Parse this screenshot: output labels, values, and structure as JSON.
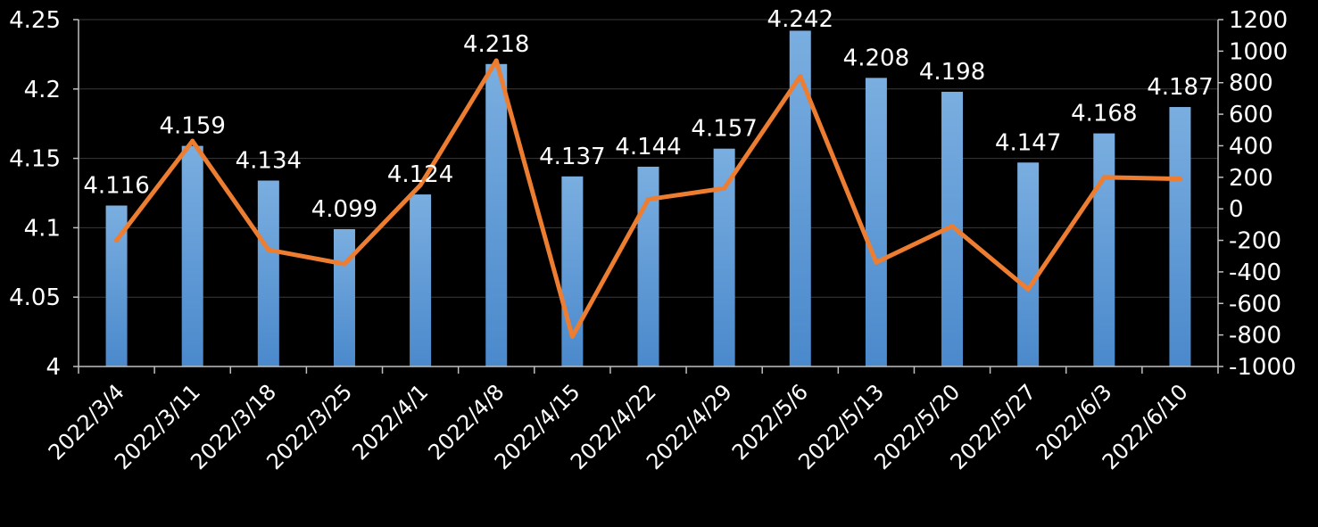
{
  "colors": {
    "background": "#000000",
    "bar": "#5b9bd5",
    "line": "#ed7d31",
    "grid": "#3a3a3a",
    "text": "#ffffff"
  },
  "chart_data": {
    "type": "bar",
    "categories": [
      "2022/3/4",
      "2022/3/11",
      "2022/3/18",
      "2022/3/25",
      "2022/4/1",
      "2022/4/8",
      "2022/4/15",
      "2022/4/22",
      "2022/4/29",
      "2022/5/6",
      "2022/5/13",
      "2022/5/20",
      "2022/5/27",
      "2022/6/3",
      "2022/6/10"
    ],
    "series": [
      {
        "type": "bar",
        "axis": "left",
        "values": [
          4.116,
          4.159,
          4.134,
          4.099,
          4.124,
          4.218,
          4.137,
          4.144,
          4.157,
          4.242,
          4.208,
          4.198,
          4.147,
          4.168,
          4.187
        ],
        "data_labels": [
          "4.116",
          "4.159",
          "4.134",
          "4.099",
          "4.124",
          "4.218",
          "4.137",
          "4.144",
          "4.157",
          "4.242",
          "4.208",
          "4.198",
          "4.147",
          "4.168",
          "4.187"
        ]
      },
      {
        "type": "line",
        "axis": "right",
        "values": [
          -200,
          430,
          -260,
          -350,
          150,
          940,
          -810,
          60,
          130,
          840,
          -340,
          -110,
          -510,
          200,
          190
        ]
      }
    ],
    "left_axis": {
      "ylim": [
        4,
        4.25
      ],
      "ticks": [
        4,
        4.05,
        4.1,
        4.15,
        4.2,
        4.25
      ],
      "tick_labels": [
        "4",
        "4.05",
        "4.1",
        "4.15",
        "4.2",
        "4.25"
      ]
    },
    "right_axis": {
      "ylim": [
        -1000,
        1200
      ],
      "ticks": [
        -1000,
        -800,
        -600,
        -400,
        -200,
        0,
        200,
        400,
        600,
        800,
        1000,
        1200
      ],
      "tick_labels": [
        "-1000",
        "-800",
        "-600",
        "-400",
        "-200",
        "0",
        "200",
        "400",
        "600",
        "800",
        "1000",
        "1200"
      ]
    },
    "grid": true,
    "legend": "none"
  }
}
